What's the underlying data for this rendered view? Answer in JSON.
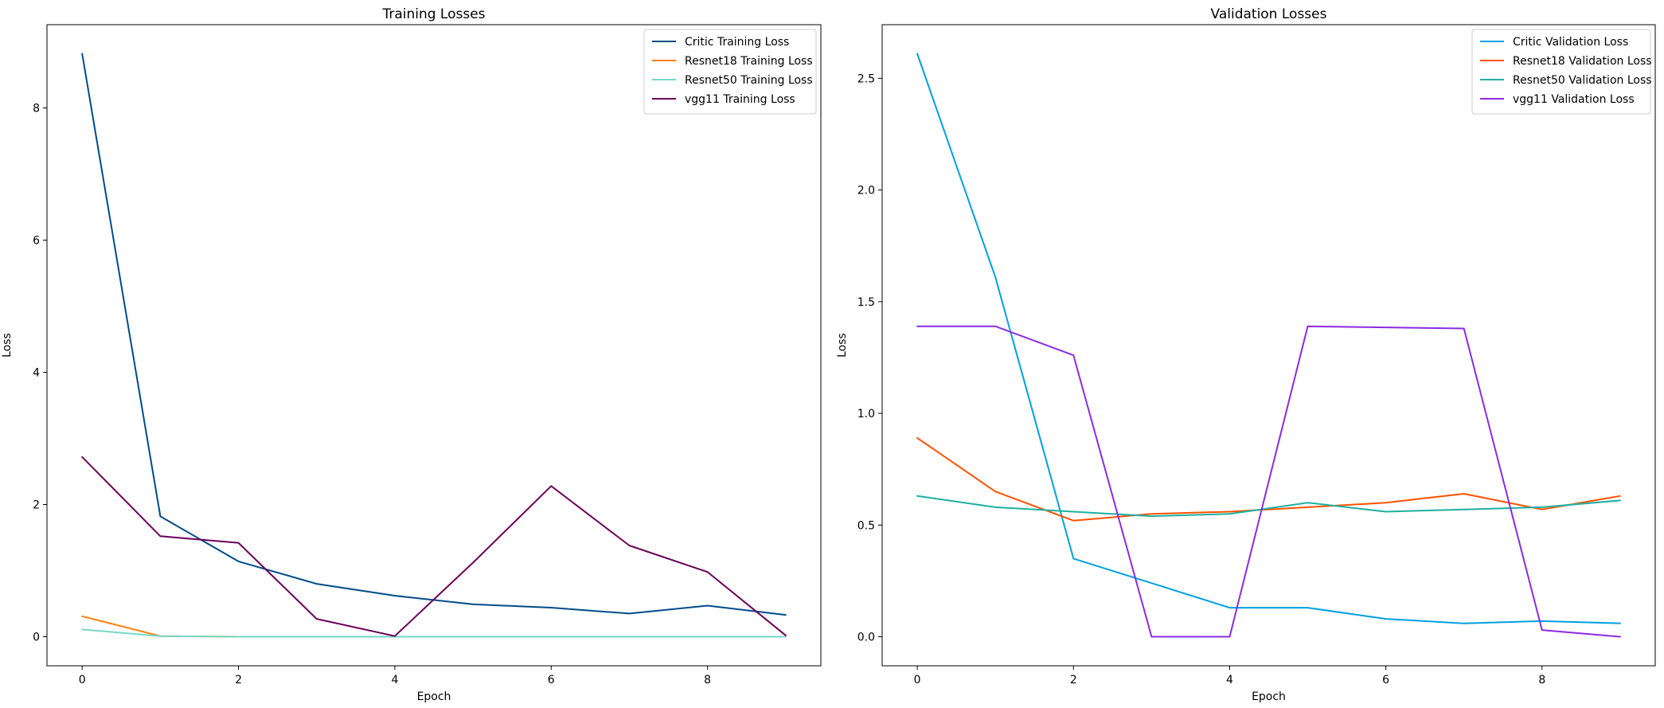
{
  "chart_data": [
    {
      "type": "line",
      "title": "Training Losses",
      "xlabel": "Epoch",
      "ylabel": "Loss",
      "x": [
        0,
        1,
        2,
        3,
        4,
        5,
        6,
        7,
        8,
        9
      ],
      "xlim": [
        -0.45,
        9.45
      ],
      "ylim": [
        -0.44,
        9.26
      ],
      "xticks": [
        0,
        2,
        4,
        6,
        8
      ],
      "yticks": [
        0,
        2,
        4,
        6,
        8
      ],
      "legend_position": "top-right",
      "series": [
        {
          "name": "Critic Training Loss",
          "color": "#004c87",
          "values": [
            8.82,
            1.82,
            1.14,
            0.8,
            0.62,
            0.49,
            0.44,
            0.35,
            0.47,
            0.33
          ]
        },
        {
          "name": "Resnet18 Training Loss",
          "color": "#ff7f0e",
          "values": [
            0.31,
            0.01,
            0.0,
            0.0,
            0.0,
            0.0,
            0.0,
            0.0,
            0.0,
            0.0
          ]
        },
        {
          "name": "Resnet50 Training Loss",
          "color": "#76d7c4",
          "values": [
            0.11,
            0.01,
            0.0,
            0.0,
            0.0,
            0.0,
            0.0,
            0.0,
            0.0,
            0.0
          ]
        },
        {
          "name": "vgg11 Training Loss",
          "color": "#6b0059",
          "values": [
            2.72,
            1.52,
            1.42,
            0.27,
            0.01,
            1.12,
            2.28,
            1.38,
            0.98,
            0.02
          ]
        }
      ]
    },
    {
      "type": "line",
      "title": "Validation Losses",
      "xlabel": "Epoch",
      "ylabel": "Loss",
      "x": [
        0,
        1,
        2,
        3,
        4,
        5,
        6,
        7,
        8,
        9
      ],
      "xlim": [
        -0.45,
        9.45
      ],
      "ylim": [
        -0.13,
        2.74
      ],
      "xticks": [
        0,
        2,
        4,
        6,
        8
      ],
      "yticks": [
        0.0,
        0.5,
        1.0,
        1.5,
        2.0,
        2.5
      ],
      "ytick_labels": [
        "0.0",
        "0.5",
        "1.0",
        "1.5",
        "2.0",
        "2.5"
      ],
      "legend_position": "top-right",
      "series": [
        {
          "name": "Critic Validation Loss",
          "color": "#00a0e0",
          "values": [
            2.61,
            1.61,
            0.35,
            0.24,
            0.13,
            0.13,
            0.08,
            0.06,
            0.07,
            0.06
          ]
        },
        {
          "name": "Resnet18 Validation Loss",
          "color": "#ff5200",
          "values": [
            0.89,
            0.65,
            0.52,
            0.55,
            0.56,
            0.58,
            0.6,
            0.64,
            0.57,
            0.63
          ]
        },
        {
          "name": "Resnet50 Validation Loss",
          "color": "#1fafa0",
          "values": [
            0.63,
            0.58,
            0.56,
            0.54,
            0.55,
            0.6,
            0.56,
            0.57,
            0.58,
            0.61
          ]
        },
        {
          "name": "vgg11 Validation Loss",
          "color": "#8a2be2",
          "values": [
            1.39,
            1.39,
            1.26,
            0.0,
            0.0,
            1.39,
            1.385,
            1.38,
            0.03,
            0.0
          ]
        }
      ]
    }
  ]
}
